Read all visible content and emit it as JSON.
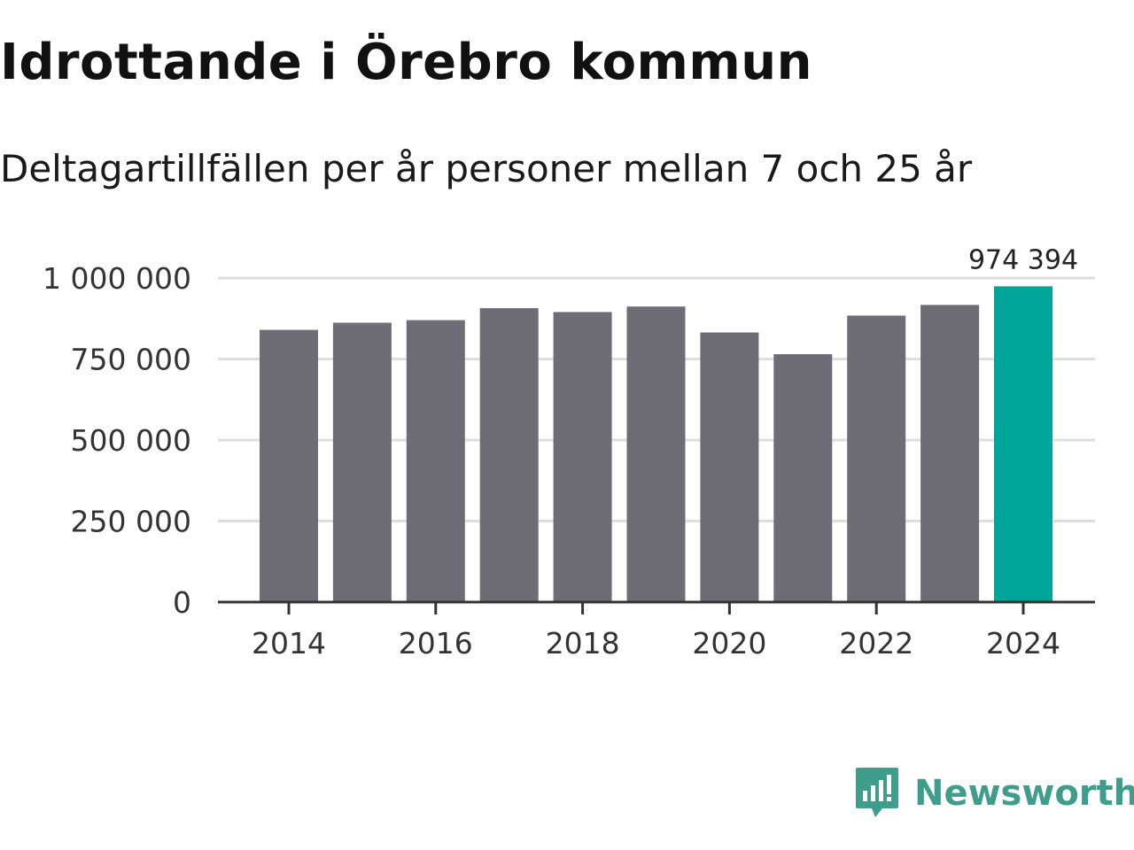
{
  "chart_data": {
    "type": "bar",
    "title": "Idrottande i Örebro kommun",
    "subtitle": "Deltagartillfällen per år personer mellan 7 och 25 år",
    "categories": [
      "2014",
      "2015",
      "2016",
      "2017",
      "2018",
      "2019",
      "2020",
      "2021",
      "2022",
      "2023",
      "2024"
    ],
    "values": [
      840000,
      862000,
      870000,
      907000,
      895000,
      912000,
      832000,
      765000,
      884000,
      917000,
      974394
    ],
    "highlight_index": 10,
    "highlight_label": "974 394",
    "xticks": [
      "2014",
      "2016",
      "2018",
      "2020",
      "2022",
      "2024"
    ],
    "yticks": [
      0,
      250000,
      500000,
      750000,
      1000000
    ],
    "ytick_labels": [
      "0",
      "250 000",
      "500 000",
      "750 000",
      "1 000 000"
    ],
    "ylim": [
      0,
      1000000
    ],
    "xlabel": "",
    "ylabel": "",
    "grid": true,
    "colors": {
      "bar": "#6e6d75",
      "highlight": "#00a59a",
      "grid": "#dedede",
      "axis": "#333333"
    }
  },
  "brand": {
    "name": "Newsworthy",
    "icon": "newsworthy-logo-icon",
    "color": "#3f9d8c"
  }
}
